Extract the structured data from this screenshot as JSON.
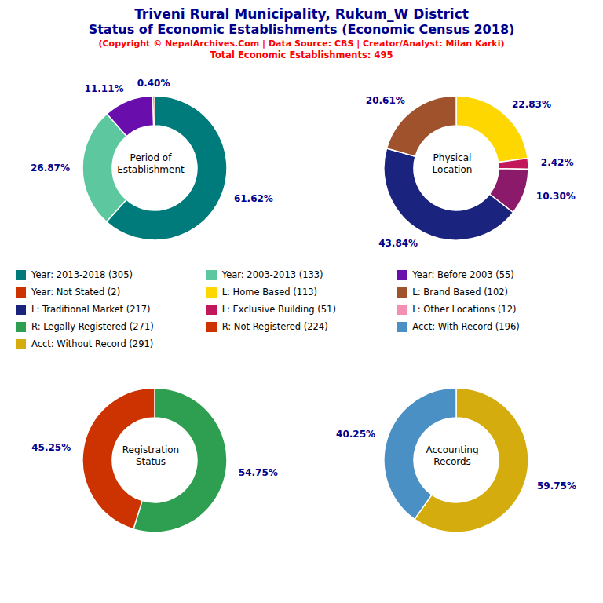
{
  "title": [
    "Triveni Rural Municipality, Rukum_W District",
    "Status of Economic Establishments (Economic Census 2018)"
  ],
  "subtitle": [
    "(Copyright © NepalArchives.Com | Data Source: CBS | Creator/Analyst: Milan Karki)",
    "Total Economic Establishments: 495"
  ],
  "legend_entries": [
    {
      "name": "Year: 2013-2018 (305)",
      "color": "#007B7B"
    },
    {
      "name": "Year: 2003-2013 (133)",
      "color": "#5DC8A0"
    },
    {
      "name": "Year: Before 2003 (55)",
      "color": "#6A0DAD"
    },
    {
      "name": "Year: Not Stated (2)",
      "color": "#CC3300"
    },
    {
      "name": "L: Home Based (113)",
      "color": "#FFD700"
    },
    {
      "name": "L: Brand Based (102)",
      "color": "#A0522D"
    },
    {
      "name": "L: Traditional Market (217)",
      "color": "#1A237E"
    },
    {
      "name": "L: Exclusive Building (51)",
      "color": "#C2185B"
    },
    {
      "name": "L: Other Locations (12)",
      "color": "#F48FB1"
    },
    {
      "name": "R: Legally Registered (271)",
      "color": "#2E9E50"
    },
    {
      "name": "R: Not Registered (224)",
      "color": "#CC3300"
    },
    {
      "name": "Acct: With Record (196)",
      "color": "#4A90C4"
    },
    {
      "name": "Acct: Without Record (291)",
      "color": "#D4AC0D"
    }
  ],
  "chart_data": [
    {
      "type": "pie",
      "title": "Period of\nEstablishment",
      "values": [
        61.62,
        26.87,
        11.11,
        0.4
      ],
      "value_labels": [
        "61.62%",
        "26.87%",
        "11.11%",
        "0.40%"
      ],
      "colors": [
        "#007B7B",
        "#5DC8A0",
        "#6A0DAD",
        "#CC3300"
      ],
      "data_labels": true
    },
    {
      "type": "pie",
      "title": "Physical\nLocation",
      "values": [
        22.83,
        2.42,
        10.3,
        43.84,
        20.61
      ],
      "value_labels": [
        "22.83%",
        "2.42%",
        "10.30%",
        "43.84%",
        "20.61%"
      ],
      "colors": [
        "#FFD700",
        "#C2185B",
        "#8B1A6B",
        "#1A237E",
        "#A0522D"
      ],
      "data_labels": true
    },
    {
      "type": "pie",
      "title": "Registration\nStatus",
      "values": [
        54.75,
        45.25
      ],
      "value_labels": [
        "54.75%",
        "45.25%"
      ],
      "colors": [
        "#2E9E50",
        "#CC3300"
      ],
      "data_labels": true
    },
    {
      "type": "pie",
      "title": "Accounting\nRecords",
      "values": [
        59.75,
        40.25
      ],
      "value_labels": [
        "59.75%",
        "40.25%"
      ],
      "colors": [
        "#D4AC0D",
        "#4A90C4"
      ],
      "data_labels": true
    }
  ]
}
